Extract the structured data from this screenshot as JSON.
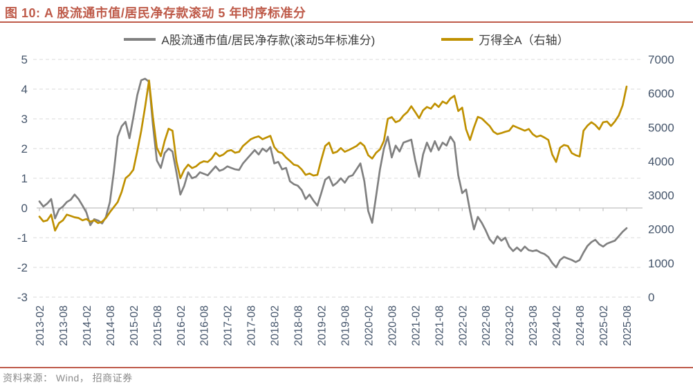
{
  "title": "图 10: A 股流通市值/居民净存款滚动 5 年时序标准分",
  "source": "资料来源： Wind， 招商证券",
  "colors": {
    "accent_rule": "#BE5A49",
    "title_text": "#BE5A49",
    "axis_text": "#44546A",
    "grid_line": "#D9D9D9",
    "zero_axis_line": "#BFBFBF",
    "source_text": "#8A8A8A",
    "series_gray": "#808080",
    "series_gold": "#BF9000"
  },
  "chart_data": {
    "type": "line",
    "x_start": "2013-02",
    "x_interval": "monthly",
    "x_tick_labels": [
      "2013-02",
      "2013-08",
      "2014-02",
      "2014-08",
      "2015-02",
      "2015-08",
      "2016-02",
      "2016-08",
      "2017-02",
      "2017-08",
      "2018-02",
      "2018-08",
      "2019-02",
      "2019-08",
      "2020-02",
      "2020-08",
      "2021-02",
      "2021-08",
      "2022-02",
      "2022-08",
      "2023-02",
      "2023-08",
      "2024-02",
      "2024-08",
      "2025-02",
      "2025-08"
    ],
    "left_axis": {
      "min": -3,
      "max": 5,
      "ticks": [
        5,
        4,
        3,
        2,
        1,
        0,
        -1,
        -2,
        -3
      ]
    },
    "right_axis": {
      "min": 0,
      "max": 7000,
      "ticks": [
        7000,
        6000,
        5000,
        4000,
        3000,
        2000,
        1000,
        0
      ]
    },
    "legend_position": "top",
    "grid": "horizontal-dashed",
    "series": [
      {
        "name": "A股流通市值/居民净存款(滚动5年标准分)",
        "axis": "left",
        "color": "#808080",
        "values": [
          0.22,
          0.05,
          0.15,
          0.3,
          -0.35,
          -0.05,
          0.05,
          0.2,
          0.28,
          0.45,
          0.3,
          0.08,
          -0.15,
          -0.58,
          -0.38,
          -0.42,
          -0.52,
          -0.3,
          0.2,
          1.2,
          2.4,
          2.75,
          2.9,
          2.35,
          3.05,
          3.8,
          4.3,
          4.35,
          4.25,
          2.8,
          1.6,
          1.35,
          1.85,
          2.0,
          1.9,
          1.2,
          0.45,
          0.75,
          1.2,
          1.0,
          1.05,
          1.2,
          1.15,
          1.1,
          1.25,
          1.4,
          1.25,
          1.3,
          1.4,
          1.35,
          1.3,
          1.28,
          1.5,
          1.65,
          1.8,
          1.95,
          1.8,
          2.0,
          1.9,
          2.05,
          1.5,
          1.55,
          1.3,
          1.35,
          0.9,
          0.8,
          0.75,
          0.6,
          0.3,
          0.45,
          0.25,
          0.08,
          0.5,
          0.95,
          1.05,
          0.75,
          0.85,
          1.0,
          0.85,
          1.05,
          1.1,
          1.3,
          1.5,
          0.9,
          -0.1,
          -0.5,
          0.4,
          1.3,
          2.0,
          2.4,
          1.7,
          2.1,
          1.9,
          2.2,
          2.25,
          2.3,
          1.6,
          1.05,
          1.8,
          2.2,
          1.9,
          2.25,
          1.95,
          2.2,
          2.1,
          2.4,
          2.2,
          1.1,
          0.5,
          0.62,
          -0.1,
          -0.72,
          -0.3,
          -0.5,
          -0.75,
          -1.05,
          -1.2,
          -0.95,
          -1.1,
          -1.0,
          -1.3,
          -1.45,
          -1.33,
          -1.45,
          -1.3,
          -1.42,
          -1.45,
          -1.42,
          -1.5,
          -1.55,
          -1.65,
          -1.85,
          -2.0,
          -1.75,
          -1.65,
          -1.7,
          -1.75,
          -1.82,
          -1.75,
          -1.5,
          -1.28,
          -1.15,
          -1.07,
          -1.22,
          -1.3,
          -1.2,
          -1.15,
          -1.1,
          -0.95,
          -0.8,
          -0.68
        ]
      },
      {
        "name": "万得全A（右轴）",
        "axis": "right",
        "color": "#BF9000",
        "values": [
          2370,
          2230,
          2260,
          2430,
          1960,
          2180,
          2260,
          2430,
          2390,
          2350,
          2330,
          2260,
          2300,
          2220,
          2260,
          2180,
          2220,
          2330,
          2500,
          2650,
          2800,
          3100,
          3500,
          3600,
          3750,
          4300,
          4900,
          5600,
          6380,
          5300,
          4400,
          4150,
          4600,
          4960,
          4900,
          4000,
          3500,
          3750,
          3900,
          3800,
          3850,
          3950,
          4000,
          3980,
          4080,
          4250,
          4150,
          4200,
          4300,
          4330,
          4250,
          4280,
          4450,
          4550,
          4650,
          4700,
          4735,
          4650,
          4700,
          4750,
          4420,
          4280,
          4240,
          4110,
          4010,
          3900,
          3870,
          3760,
          3600,
          3640,
          3580,
          3600,
          4040,
          4450,
          4550,
          4240,
          4280,
          4390,
          4280,
          4330,
          4390,
          4450,
          4550,
          4450,
          4180,
          4080,
          4250,
          4350,
          4600,
          5250,
          5300,
          5150,
          5200,
          5350,
          5450,
          5620,
          5450,
          5270,
          5500,
          5600,
          5550,
          5700,
          5600,
          5760,
          5700,
          5850,
          5930,
          5480,
          5580,
          4940,
          4630,
          5000,
          5310,
          5260,
          5150,
          5040,
          4870,
          4800,
          4830,
          4870,
          4900,
          5050,
          5000,
          4950,
          4900,
          4950,
          4800,
          4720,
          4760,
          4700,
          4630,
          4200,
          3980,
          4400,
          4480,
          4450,
          4240,
          4180,
          4140,
          4900,
          5050,
          5150,
          5070,
          4940,
          5150,
          5170,
          5040,
          5170,
          5350,
          5650,
          6200
        ]
      }
    ]
  }
}
